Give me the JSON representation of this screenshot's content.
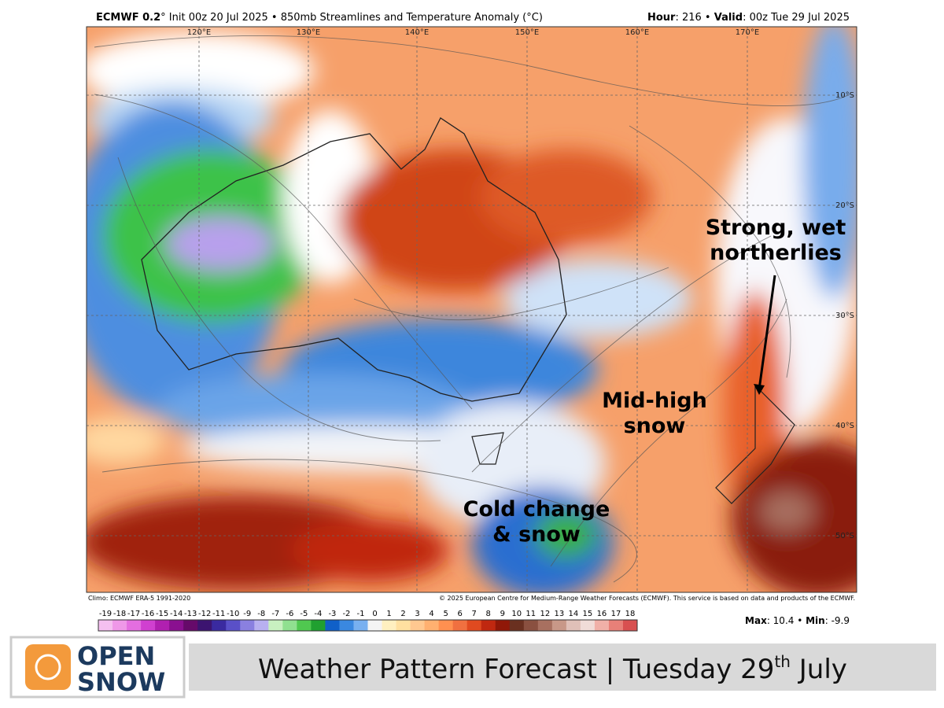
{
  "header": {
    "model": "ECMWF 0.2",
    "init": "° Init 00z 20 Jul 2025 • 850mb Streamlines and Temperature Anomaly (°C)",
    "hour_label": "Hour",
    "hour": ": 216 • ",
    "valid_label": "Valid",
    "valid": ": 00z Tue 29 Jul 2025"
  },
  "map": {
    "longitudes": [
      "120°E",
      "130°E",
      "140°E",
      "150°E",
      "160°E",
      "170°E"
    ],
    "latitudes": [
      "10°S",
      "20°S",
      "30°S",
      "40°S",
      "50°S"
    ],
    "annotations": [
      {
        "lines": [
          "Strong, wet",
          "northerlies"
        ]
      },
      {
        "lines": [
          "Mid-high",
          "snow"
        ]
      },
      {
        "lines": [
          "Cold change",
          "& snow"
        ]
      }
    ],
    "climo": "Climo: ECMWF ERA-5 1991-2020",
    "copyright": "© 2025 European Centre for Medium-Range Weather Forecasts (ECMWF). This service is based on data and products of the ECMWF."
  },
  "colorbar": {
    "ticks": [
      -19,
      -18,
      -17,
      -16,
      -15,
      -14,
      -13,
      -12,
      -11,
      -10,
      -9,
      -8,
      -7,
      -6,
      -5,
      -4,
      -3,
      -2,
      -1,
      0,
      1,
      2,
      3,
      4,
      5,
      6,
      7,
      8,
      9,
      10,
      11,
      12,
      13,
      14,
      15,
      16,
      17,
      18
    ],
    "colors": [
      "#f5c0f0",
      "#ef98e8",
      "#e46ee0",
      "#d040d0",
      "#b020b0",
      "#8a1090",
      "#660a6a",
      "#3c1470",
      "#3a2aa0",
      "#5a50c8",
      "#8a80e0",
      "#b8b0f0",
      "#c8f0c0",
      "#90e090",
      "#50c850",
      "#20a030",
      "#1060c8",
      "#3a88e0",
      "#78b0f0",
      "#f4f4f4",
      "#fff0c0",
      "#ffe0a0",
      "#ffc890",
      "#ffb070",
      "#ff9050",
      "#f07040",
      "#e04a20",
      "#c02810",
      "#901808",
      "#6a3020",
      "#8a5040",
      "#a87060",
      "#c89888",
      "#e0c0b8",
      "#f0dcd8",
      "#f0b0a8",
      "#e88078",
      "#d85050"
    ]
  },
  "stats": {
    "max_label": "Max",
    "max": ": 10.4 • ",
    "min_label": "Min",
    "min": ": -9.9"
  },
  "logo": {
    "line1": "OPEN",
    "line2": "SNOW"
  },
  "banner": {
    "text": "Weather Pattern Forecast | Tuesday 29",
    "sup": "th",
    "end": " July"
  }
}
